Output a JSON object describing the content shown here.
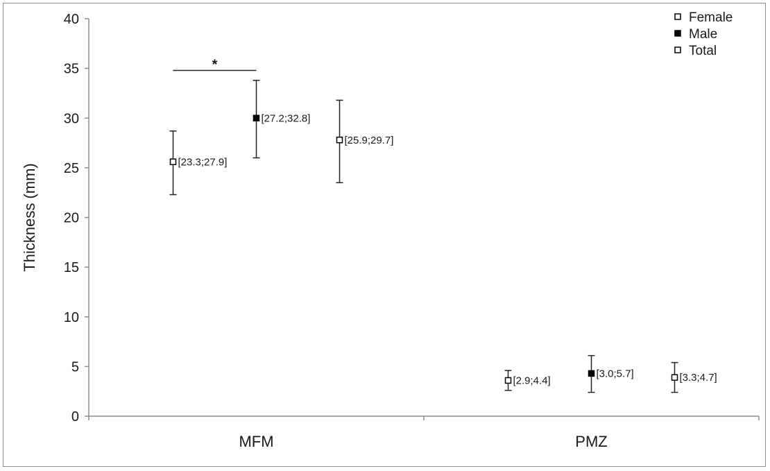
{
  "chart_data": {
    "type": "scatter",
    "ylabel": "Thickness (mm)",
    "xlabel": "",
    "ylim": [
      0,
      40
    ],
    "yticks": [
      0,
      5,
      10,
      15,
      20,
      25,
      30,
      35,
      40
    ],
    "categories": [
      "MFM",
      "PMZ"
    ],
    "legend_position": "top-right",
    "series": [
      {
        "name": "Female",
        "marker": "open-square",
        "color": "#000000",
        "values": [
          25.6,
          3.6
        ],
        "err_low": [
          22.3,
          2.6
        ],
        "err_high": [
          28.7,
          4.6
        ],
        "labels": [
          "[23.3;27.9]",
          "[2.9;4.4]"
        ]
      },
      {
        "name": "Male",
        "marker": "filled-square",
        "color": "#000000",
        "values": [
          30.0,
          4.3
        ],
        "err_low": [
          26.0,
          2.4
        ],
        "err_high": [
          33.8,
          6.1
        ],
        "labels": [
          "[27.2;32.8]",
          "[3.0;5.7]"
        ]
      },
      {
        "name": "Total",
        "marker": "open-square",
        "color": "#000000",
        "values": [
          27.8,
          3.9
        ],
        "err_low": [
          23.5,
          2.4
        ],
        "err_high": [
          31.8,
          5.4
        ],
        "labels": [
          "[25.9;29.7]",
          "[3.3;4.7]"
        ]
      }
    ],
    "annotations": [
      {
        "text": "*",
        "between": [
          "Female",
          "Male"
        ],
        "category": "MFM",
        "y": 34.8
      }
    ],
    "grid": false
  }
}
